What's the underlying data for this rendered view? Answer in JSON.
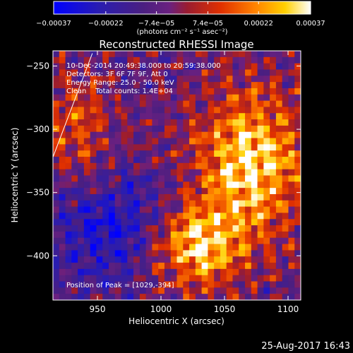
{
  "chart_data": {
    "type": "heatmap",
    "title": "Reconstructed RHESSI Image",
    "xlabel": "Heliocentric X (arcsec)",
    "ylabel": "Heliocentric Y (arcsec)",
    "xlim": [
      915,
      1110
    ],
    "ylim": [
      -435,
      -238
    ],
    "x_ticks": [
      950,
      1000,
      1050,
      1100
    ],
    "x_tick_labels": [
      "950",
      "1000",
      "1050",
      "1100"
    ],
    "y_ticks": [
      -250,
      -300,
      -350,
      -400
    ],
    "y_tick_labels": [
      "−250",
      "−300",
      "−350",
      "−400"
    ],
    "colorbar": {
      "ticks": [
        -0.00037,
        -0.00022,
        -7.4e-05,
        7.4e-05,
        0.00022,
        0.00037
      ],
      "tick_labels": [
        "−0.00037",
        "−0.00022",
        "−7.4e−05",
        "7.4e−05",
        "0.00022",
        "0.00037"
      ],
      "units_label": "(photons cm⁻² s⁻¹ asec⁻²)",
      "colors": [
        "#0000ff",
        "#3a1aa0",
        "#4b1f7a",
        "#6a2080",
        "#8a1d2a",
        "#d22a00",
        "#ff7a00",
        "#ffc000",
        "#ffff80",
        "#ffffff"
      ]
    },
    "image": {
      "grid_cols": 40,
      "grid_rows": 40,
      "peak_x": 1029,
      "peak_y": -394
    },
    "limb_curve": [
      [
        915,
        -322
      ],
      [
        946,
        -240
      ]
    ],
    "annotations": {
      "time_range": "10-Dec-2014 20:49:38.000 to 20:59:38.000",
      "detectors": "Detectors: 3F 6F 7F 9F, Att 0",
      "energy_range": "Energy Range: 25.0 - 50.0 keV",
      "method": "Clean    Total counts: 1.4E+04",
      "peak": "Position of Peak = [1029,-394]"
    },
    "grid": false,
    "legend": "none"
  },
  "footer": {
    "date": "25-Aug-2017 16:43"
  }
}
